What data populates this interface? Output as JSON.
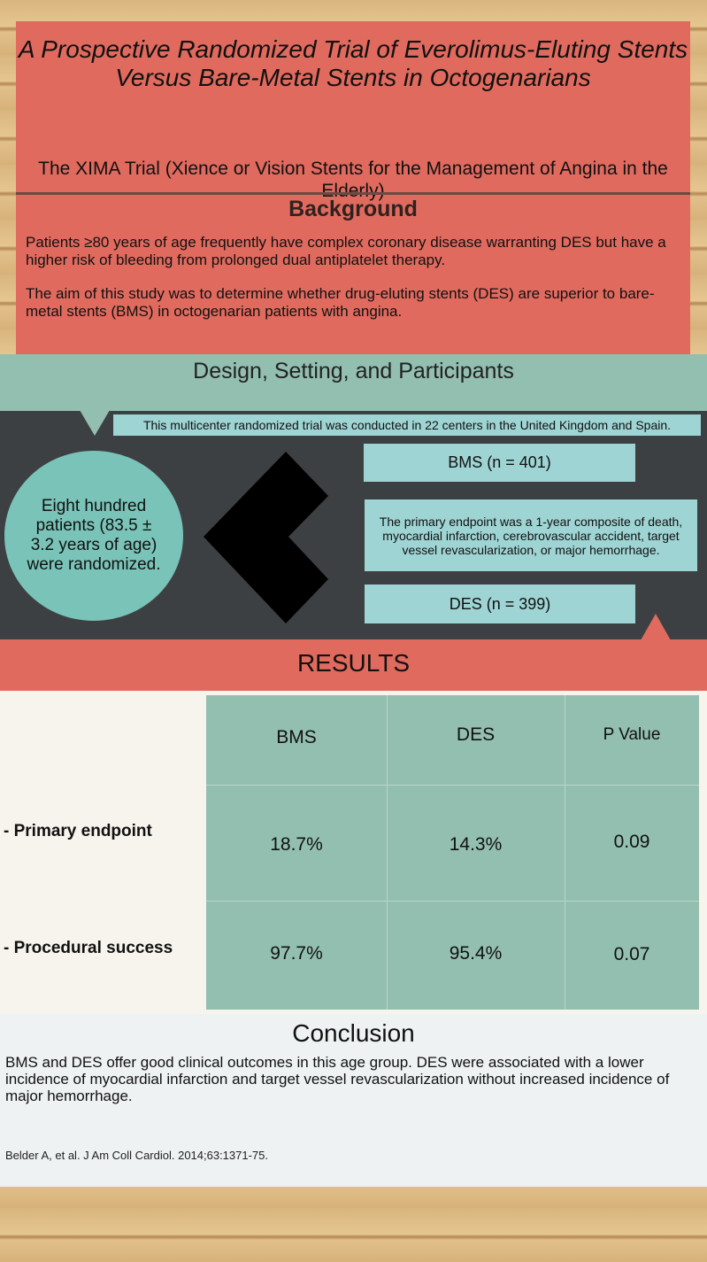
{
  "title": "A Prospective Randomized Trial of Everolimus-Eluting Stents Versus Bare-Metal Stents in Octogenarians",
  "subtitle": "The XIMA Trial (Xience or Vision Stents for the Management of Angina in the Elderly)",
  "background": {
    "heading": "Background",
    "p1": "Patients ≥80 years of age frequently have complex coronary disease warranting DES but have a higher risk of bleeding from prolonged dual antiplatelet therapy.",
    "p2": "The aim of this study was to determine whether drug-eluting stents (DES) are superior to bare-metal stents (BMS) in octogenarian patients with angina."
  },
  "design": {
    "heading": "Design, Setting, and Participants",
    "centers": "This multicenter randomized trial was conducted in 22 centers in the United Kingdom and Spain.",
    "patients": "Eight hundred patients (83.5 ± 3.2 years of age) were randomized.",
    "bms": "BMS (n = 401)",
    "endpoint": "The primary endpoint was a 1-year composite of death, myocardial infarction, cerebrovascular accident, target vessel revascularization, or major hemorrhage.",
    "des": "DES (n = 399)"
  },
  "results": {
    "heading": "RESULTS",
    "columns": [
      "BMS",
      "DES",
      "P Value"
    ],
    "rows": [
      {
        "label": "- Primary endpoint",
        "values": [
          "18.7%",
          "14.3%",
          "0.09"
        ]
      },
      {
        "label": "- Procedural success",
        "values": [
          "97.7%",
          "95.4%",
          "0.07"
        ]
      }
    ]
  },
  "conclusion": {
    "heading": "Conclusion",
    "text": "BMS and DES offer good clinical outcomes in this age group. DES were associated with a lower incidence of myocardial infarction and target vessel revascularization without increased incidence of major hemorrhage."
  },
  "citation": "Belder A, et al. J Am Coll Cardiol. 2014;63:1371-75.",
  "colors": {
    "red": "#e06a5e",
    "teal": "#93bfb0",
    "light_teal": "#9ed4d3",
    "dark": "#3d4043"
  }
}
